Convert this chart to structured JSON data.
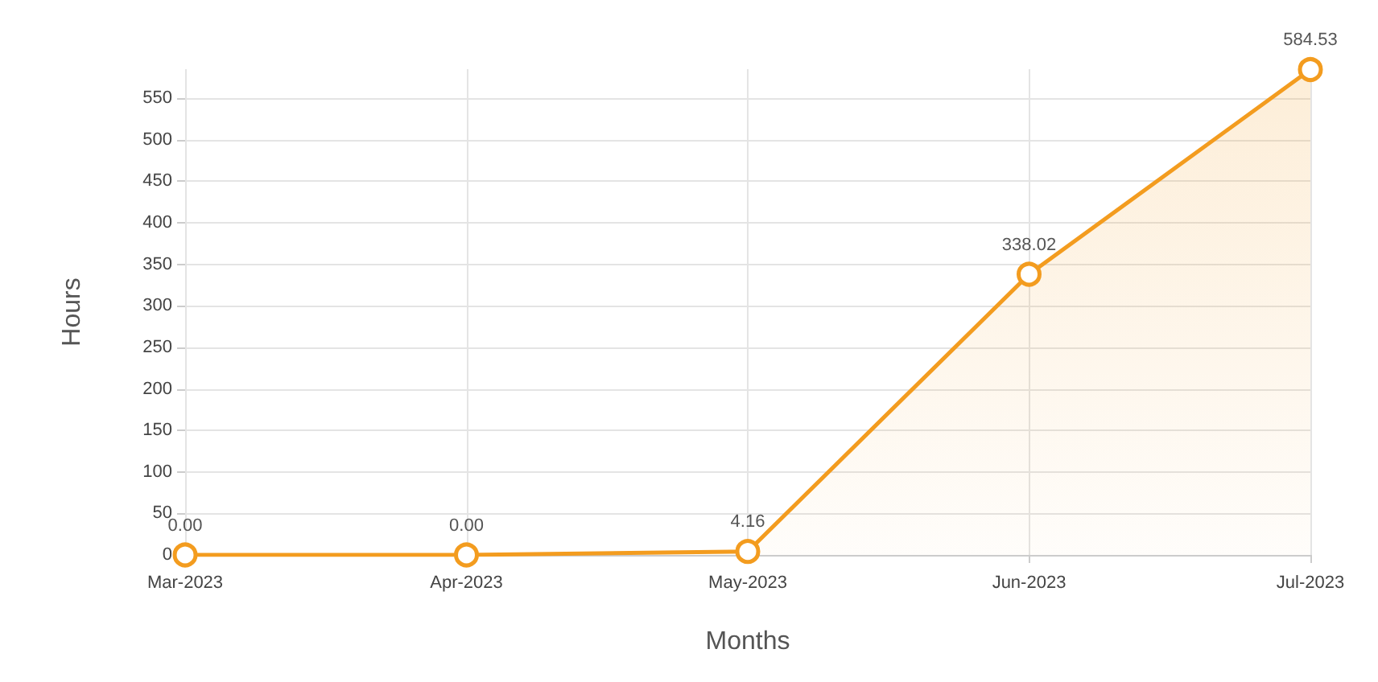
{
  "chart_data": {
    "type": "area",
    "xlabel": "Months",
    "ylabel": "Hours",
    "categories": [
      "Mar-2023",
      "Apr-2023",
      "May-2023",
      "Jun-2023",
      "Jul-2023"
    ],
    "series": [
      {
        "color": "#f39c1f",
        "values": [
          0.0,
          0.0,
          4.16,
          338.02,
          584.53
        ],
        "value_labels": [
          "0.00",
          "0.00",
          "4.16",
          "338.02",
          "584.53"
        ]
      }
    ],
    "ylim": [
      0,
      585
    ],
    "yticks": [
      0,
      50,
      100,
      150,
      200,
      250,
      300,
      350,
      400,
      450,
      500,
      550
    ],
    "grid": true,
    "marker": "circle"
  }
}
